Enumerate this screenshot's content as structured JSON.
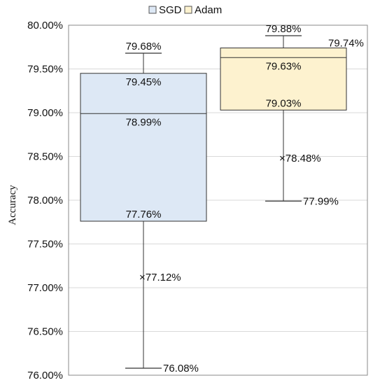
{
  "chart_data": {
    "type": "boxplot",
    "ylabel": "Accuracy",
    "ylim": [
      76.0,
      80.0
    ],
    "yticks": [
      {
        "value": 80.0,
        "label": "80.00%"
      },
      {
        "value": 79.5,
        "label": "79.50%"
      },
      {
        "value": 79.0,
        "label": "79.00%"
      },
      {
        "value": 78.5,
        "label": "78.50%"
      },
      {
        "value": 78.0,
        "label": "78.00%"
      },
      {
        "value": 77.5,
        "label": "77.50%"
      },
      {
        "value": 77.0,
        "label": "77.00%"
      },
      {
        "value": 76.5,
        "label": "76.50%"
      },
      {
        "value": 76.0,
        "label": "76.00%"
      }
    ],
    "grid": true,
    "legend": "top",
    "series": [
      {
        "name": "SGD",
        "color": "#dde8f5",
        "min": 76.08,
        "q1": 77.76,
        "median": 78.99,
        "q3": 79.45,
        "max": 79.68,
        "mean": 77.12,
        "labels": {
          "min": "76.08%",
          "q1": "77.76%",
          "median": "78.99%",
          "q3": "79.45%",
          "max": "79.68%",
          "mean": "77.12%"
        }
      },
      {
        "name": "Adam",
        "color": "#fdf2cf",
        "min": 77.99,
        "q1": 79.03,
        "median": 79.63,
        "q3": 79.74,
        "max": 79.88,
        "mean": 78.48,
        "labels": {
          "min": "77.99%",
          "q1": "79.03%",
          "median": "79.63%",
          "q3": "79.74%",
          "max": "79.88%",
          "mean": "78.48%"
        }
      }
    ],
    "mean_marker": "×"
  }
}
